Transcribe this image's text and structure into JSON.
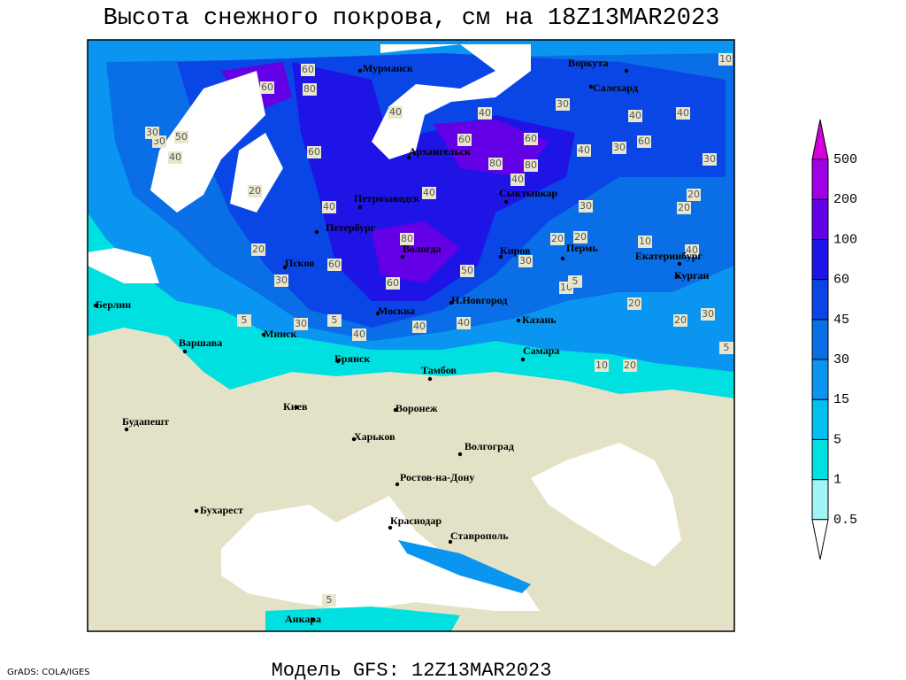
{
  "title": "Высота снежного покрова, см на 18Z13MAR2023",
  "subtitle": "Модель GFS: 12Z13MAR2023",
  "credit": "GrADS: COLA/IGES",
  "legend": {
    "levels": [
      0.5,
      1,
      5,
      15,
      30,
      45,
      60,
      100,
      200,
      500
    ],
    "colors": [
      "#ffffff",
      "#a0f5f5",
      "#00e0e0",
      "#00c0f0",
      "#0a96f0",
      "#0a6ee6",
      "#0a46e6",
      "#1e14e6",
      "#6400e6",
      "#a000e6",
      "#d200dc"
    ]
  },
  "cities": [
    {
      "name": "Мурманск"
    },
    {
      "name": "Воркута"
    },
    {
      "name": "Салехард"
    },
    {
      "name": "Архангельск"
    },
    {
      "name": "Сыктывкар"
    },
    {
      "name": "Петрозаводск"
    },
    {
      "name": "Петербург"
    },
    {
      "name": "Вологда"
    },
    {
      "name": "Киров"
    },
    {
      "name": "Пермь"
    },
    {
      "name": "Екатеринбург"
    },
    {
      "name": "Курган"
    },
    {
      "name": "Псков"
    },
    {
      "name": "Берлин"
    },
    {
      "name": "Москва"
    },
    {
      "name": "Н.Новгород"
    },
    {
      "name": "Казань"
    },
    {
      "name": "Варшава"
    },
    {
      "name": "Минск"
    },
    {
      "name": "Самара"
    },
    {
      "name": "Брянск"
    },
    {
      "name": "Тамбов"
    },
    {
      "name": "Киев"
    },
    {
      "name": "Воронеж"
    },
    {
      "name": "Будапешт"
    },
    {
      "name": "Харьков"
    },
    {
      "name": "Волгоград"
    },
    {
      "name": "Ростов-на-Дону"
    },
    {
      "name": "Бухарест"
    },
    {
      "name": "Краснодар"
    },
    {
      "name": "Ставрополь"
    },
    {
      "name": "Анкара"
    }
  ],
  "contour_labels": [
    60,
    80,
    60,
    30,
    40,
    30,
    50,
    40,
    60,
    40,
    20,
    40,
    60,
    60,
    80,
    80,
    40,
    30,
    40,
    40,
    60,
    30,
    40,
    10,
    10,
    40,
    30,
    20,
    20,
    30,
    20,
    60,
    80,
    40,
    20,
    20,
    30,
    10,
    60,
    50,
    40,
    5,
    30,
    20,
    30,
    20,
    40,
    40,
    5,
    10,
    20,
    5,
    30,
    5,
    5
  ]
}
